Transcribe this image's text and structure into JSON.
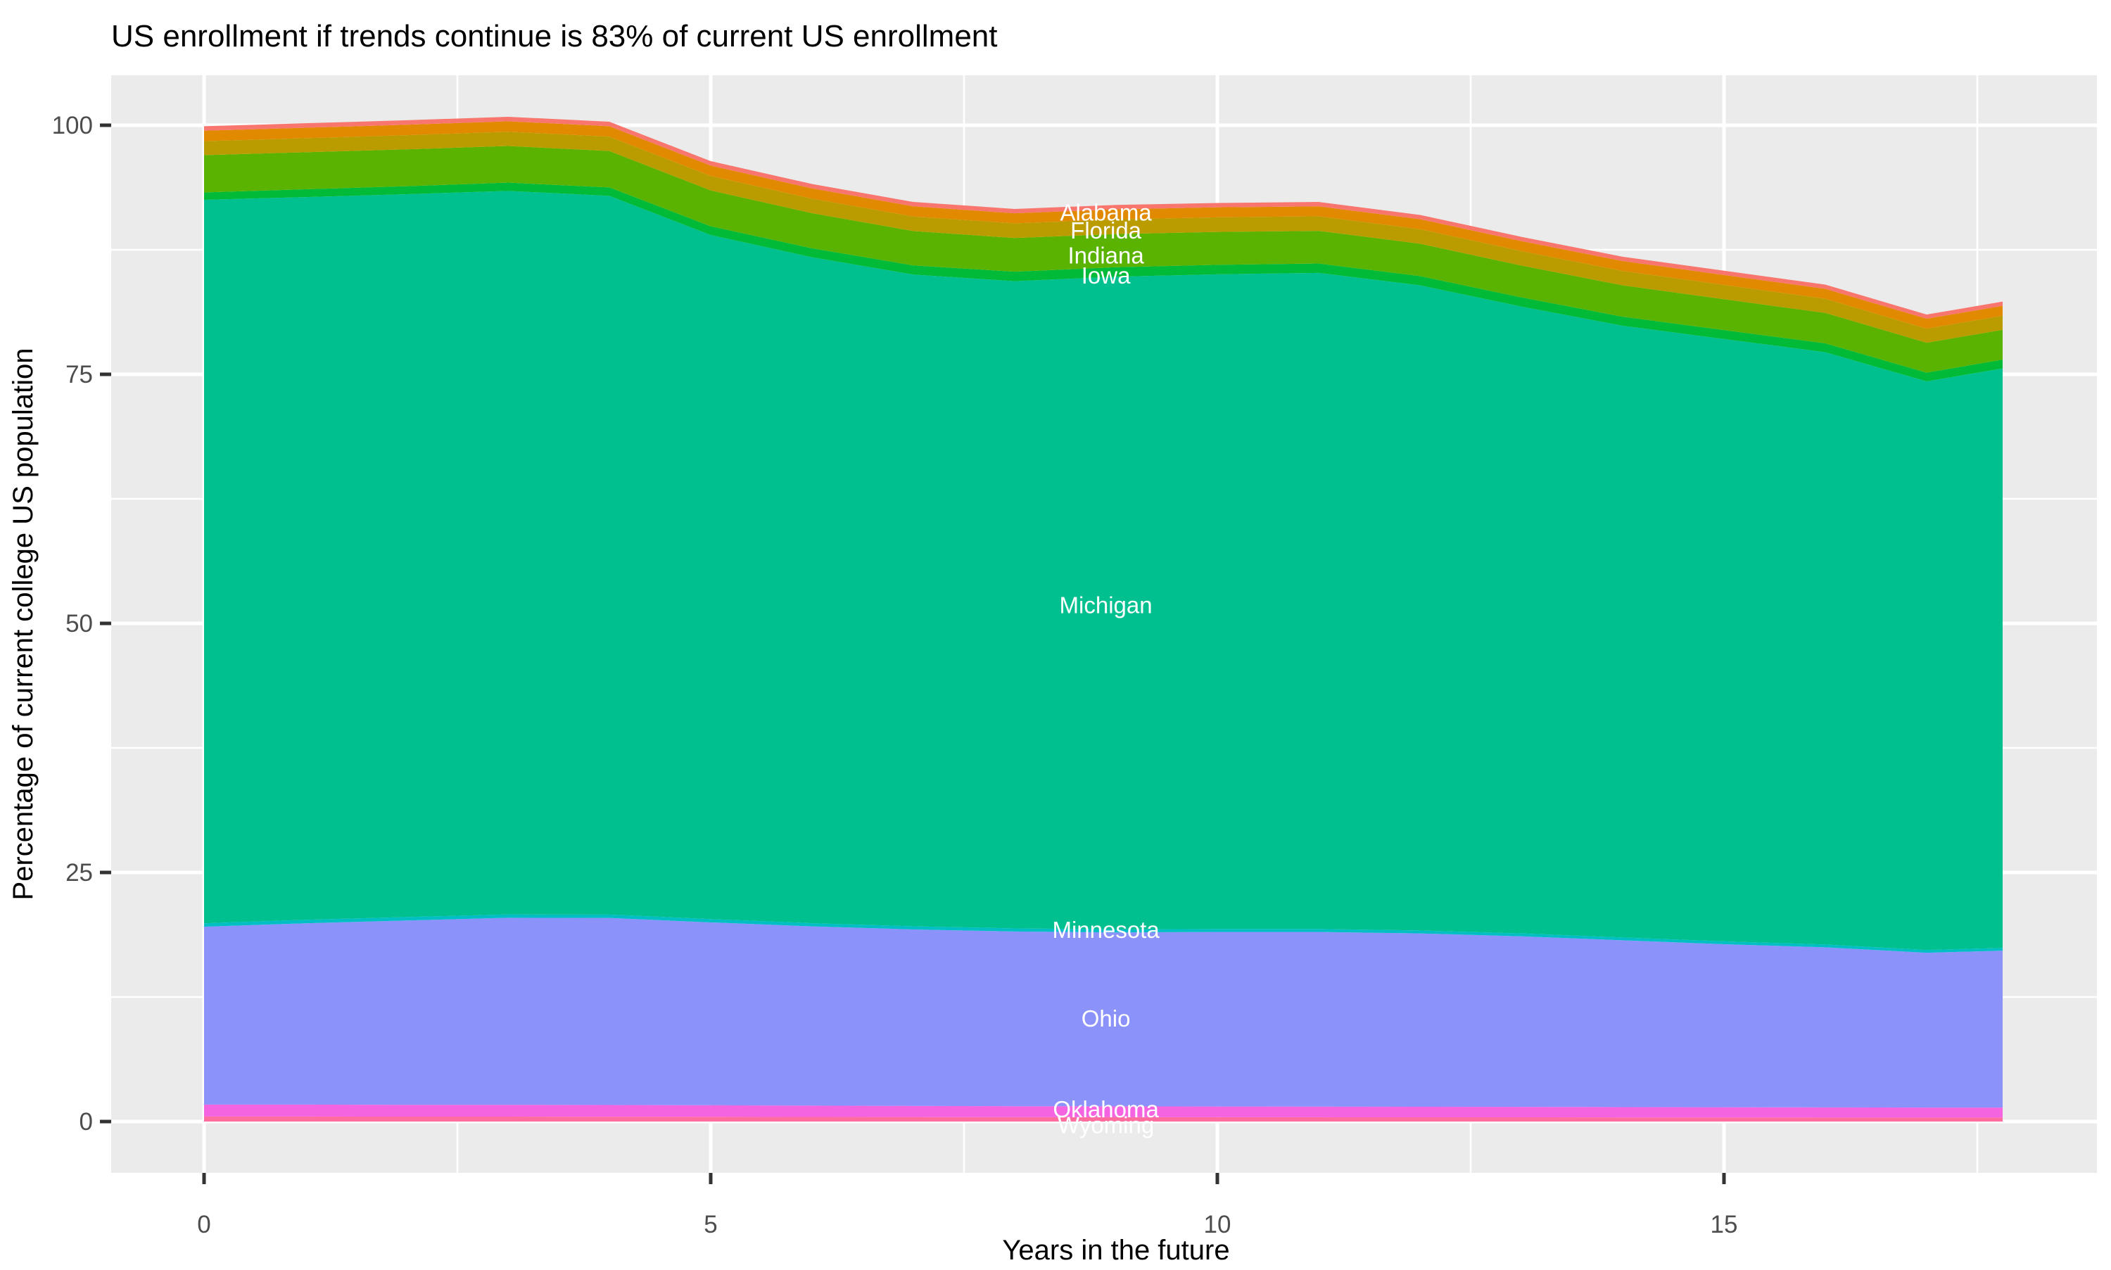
{
  "title": "US enrollment if trends continue is 83% of current US enrollment",
  "chart_data": {
    "type": "area",
    "stacked": true,
    "title": "US enrollment if trends continue is 83% of current US enrollment",
    "xlabel": "Years in the future",
    "ylabel": "Percentage of current college US population",
    "xlim": [
      0,
      18
    ],
    "ylim": [
      0,
      101
    ],
    "grid": "on",
    "legend_position": "none",
    "panel_bg": "#EBEBEB",
    "grid_color": "#FFFFFF",
    "tick_text_color": "#4D4D4D",
    "tick_mark_color": "#333333",
    "x": [
      0,
      1,
      2,
      3,
      4,
      5,
      6,
      7,
      8,
      9,
      10,
      11,
      12,
      13,
      14,
      15,
      16,
      17,
      17.75
    ],
    "x_axis": {
      "ticks": [
        {
          "value": 0,
          "label": "0"
        },
        {
          "value": 5,
          "label": "5"
        },
        {
          "value": 10,
          "label": "10"
        },
        {
          "value": 15,
          "label": "15"
        }
      ],
      "minor": [
        2.5,
        7.5,
        12.5,
        17.5
      ]
    },
    "y_axis": {
      "ticks": [
        {
          "value": 0,
          "label": "0"
        },
        {
          "value": 25,
          "label": "25"
        },
        {
          "value": 50,
          "label": "50"
        },
        {
          "value": 75,
          "label": "75"
        },
        {
          "value": 100,
          "label": "100"
        }
      ],
      "minor": [
        12.5,
        37.5,
        62.5,
        87.5
      ]
    },
    "series": [
      {
        "name": "Wyoming",
        "color": "#FF6C9E",
        "values": [
          0.5,
          0.5,
          0.49,
          0.49,
          0.48,
          0.47,
          0.46,
          0.45,
          0.44,
          0.44,
          0.43,
          0.43,
          0.42,
          0.42,
          0.41,
          0.41,
          0.4,
          0.4,
          0.4
        ]
      },
      {
        "name": "Oklahoma",
        "color": "#F564E0",
        "values": [
          1.2,
          1.2,
          1.19,
          1.19,
          1.18,
          1.16,
          1.14,
          1.12,
          1.1,
          1.09,
          1.08,
          1.07,
          1.06,
          1.05,
          1.04,
          1.03,
          1.02,
          1.0,
          1.0
        ]
      },
      {
        "name": "Ohio",
        "color": "#8B93FB",
        "values": [
          17.85,
          18.2,
          18.5,
          18.77,
          18.78,
          18.36,
          17.99,
          17.71,
          17.54,
          17.45,
          17.52,
          17.53,
          17.4,
          17.12,
          16.74,
          16.36,
          16.07,
          15.54,
          15.75
        ]
      },
      {
        "name": "Minnesota",
        "color": "#00BFC4",
        "values": [
          0.35,
          0.35,
          0.34,
          0.34,
          0.33,
          0.33,
          0.32,
          0.32,
          0.31,
          0.31,
          0.3,
          0.3,
          0.3,
          0.29,
          0.29,
          0.29,
          0.28,
          0.28,
          0.28
        ]
      },
      {
        "name": "Michigan",
        "color": "#00C08F",
        "values": [
          72.61,
          72.54,
          72.56,
          72.62,
          72.14,
          68.66,
          66.84,
          65.41,
          64.96,
          65.51,
          65.71,
          65.85,
          64.75,
          62.92,
          61.39,
          60.45,
          59.45,
          57.07,
          58.16
        ]
      },
      {
        "name": "Iowa",
        "color": "#00BA38",
        "values": [
          0.75,
          0.78,
          0.8,
          0.83,
          0.85,
          0.88,
          0.9,
          0.92,
          0.95,
          0.95,
          0.95,
          0.94,
          0.93,
          0.92,
          0.91,
          0.9,
          0.89,
          0.88,
          0.88
        ]
      },
      {
        "name": "Indiana",
        "color": "#59B300",
        "values": [
          3.74,
          3.72,
          3.7,
          3.68,
          3.65,
          3.6,
          3.52,
          3.45,
          3.38,
          3.33,
          3.3,
          3.28,
          3.25,
          3.2,
          3.15,
          3.1,
          3.05,
          3.0,
          3.0
        ]
      },
      {
        "name": "Florida",
        "color": "#BA9C00",
        "values": [
          1.4,
          1.41,
          1.42,
          1.43,
          1.44,
          1.45,
          1.46,
          1.46,
          1.47,
          1.47,
          1.47,
          1.46,
          1.46,
          1.45,
          1.44,
          1.43,
          1.42,
          1.41,
          1.41
        ]
      },
      {
        "name": "",
        "color": "#E18A00",
        "values": [
          1.05,
          1.05,
          1.05,
          1.05,
          1.05,
          1.04,
          1.03,
          1.02,
          1.01,
          1.01,
          1.0,
          1.0,
          1.0,
          1.0,
          1.0,
          1.0,
          1.0,
          1.0,
          1.0
        ]
      },
      {
        "name": "Alabama",
        "color": "#F8766D",
        "values": [
          0.45,
          0.45,
          0.45,
          0.45,
          0.45,
          0.45,
          0.44,
          0.44,
          0.44,
          0.44,
          0.44,
          0.44,
          0.43,
          0.43,
          0.43,
          0.43,
          0.42,
          0.42,
          0.42
        ]
      }
    ],
    "state_labels": [
      {
        "text": "Alabama",
        "x": 8.9,
        "y": 91.2
      },
      {
        "text": "Florida",
        "x": 8.9,
        "y": 89.4
      },
      {
        "text": "Indiana",
        "x": 8.9,
        "y": 86.9
      },
      {
        "text": "Iowa",
        "x": 8.9,
        "y": 84.9
      },
      {
        "text": "Michigan",
        "x": 8.9,
        "y": 51.8
      },
      {
        "text": "Minnesota",
        "x": 8.9,
        "y": 19.2
      },
      {
        "text": "Ohio",
        "x": 8.9,
        "y": 10.3
      },
      {
        "text": "Oklahoma",
        "x": 8.9,
        "y": 1.2
      },
      {
        "text": "Wyoming",
        "x": 8.9,
        "y": -0.4
      }
    ]
  }
}
